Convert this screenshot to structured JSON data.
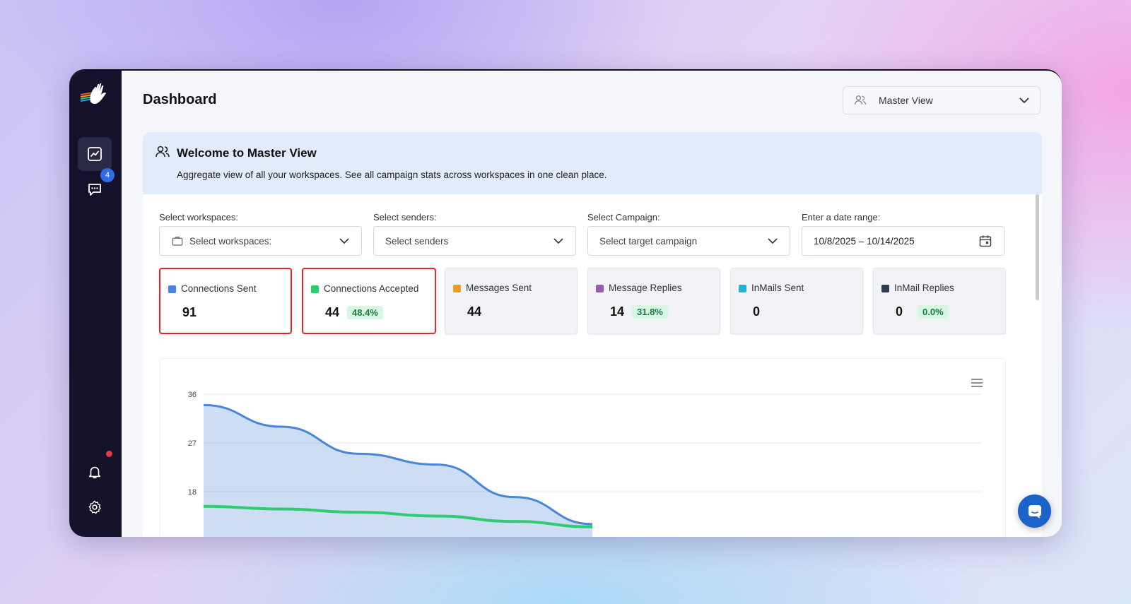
{
  "header": {
    "title": "Dashboard",
    "view_select": "Master View"
  },
  "sidebar": {
    "messages_badge": "4"
  },
  "welcome": {
    "title": "Welcome to Master View",
    "subtitle": "Aggregate view of all your workspaces. See all campaign stats across workspaces in one clean place."
  },
  "filters": {
    "workspaces": {
      "label": "Select workspaces:",
      "value": "Select workspaces:"
    },
    "senders": {
      "label": "Select senders:",
      "value": "Select senders"
    },
    "campaign": {
      "label": "Select Campaign:",
      "value": "Select target campaign"
    },
    "date": {
      "label": "Enter a date range:",
      "value": "10/8/2025 – 10/14/2025"
    }
  },
  "stats": [
    {
      "title": "Connections Sent",
      "value": "91",
      "pct": "",
      "color": "#4a86d8",
      "highlight": true
    },
    {
      "title": "Connections Accepted",
      "value": "44",
      "pct": "48.4%",
      "color": "#2ecc71",
      "highlight": true
    },
    {
      "title": "Messages Sent",
      "value": "44",
      "pct": "",
      "color": "#f39a1f",
      "highlight": false
    },
    {
      "title": "Message Replies",
      "value": "14",
      "pct": "31.8%",
      "color": "#9b59b6",
      "highlight": false
    },
    {
      "title": "InMails Sent",
      "value": "0",
      "pct": "",
      "color": "#1fb5d6",
      "highlight": false
    },
    {
      "title": "InMail Replies",
      "value": "0",
      "pct": "0.0%",
      "color": "#2c3e50",
      "highlight": false
    }
  ],
  "chart_data": {
    "type": "area",
    "y_ticks": [
      "36",
      "27",
      "18"
    ],
    "series": [
      {
        "color": "#4a86d8",
        "values": [
          34,
          30,
          25,
          23,
          17,
          12
        ]
      },
      {
        "color": "#2ecc71",
        "values": [
          15.3,
          14.8,
          14.2,
          13.5,
          12.5,
          11.5
        ]
      }
    ]
  }
}
